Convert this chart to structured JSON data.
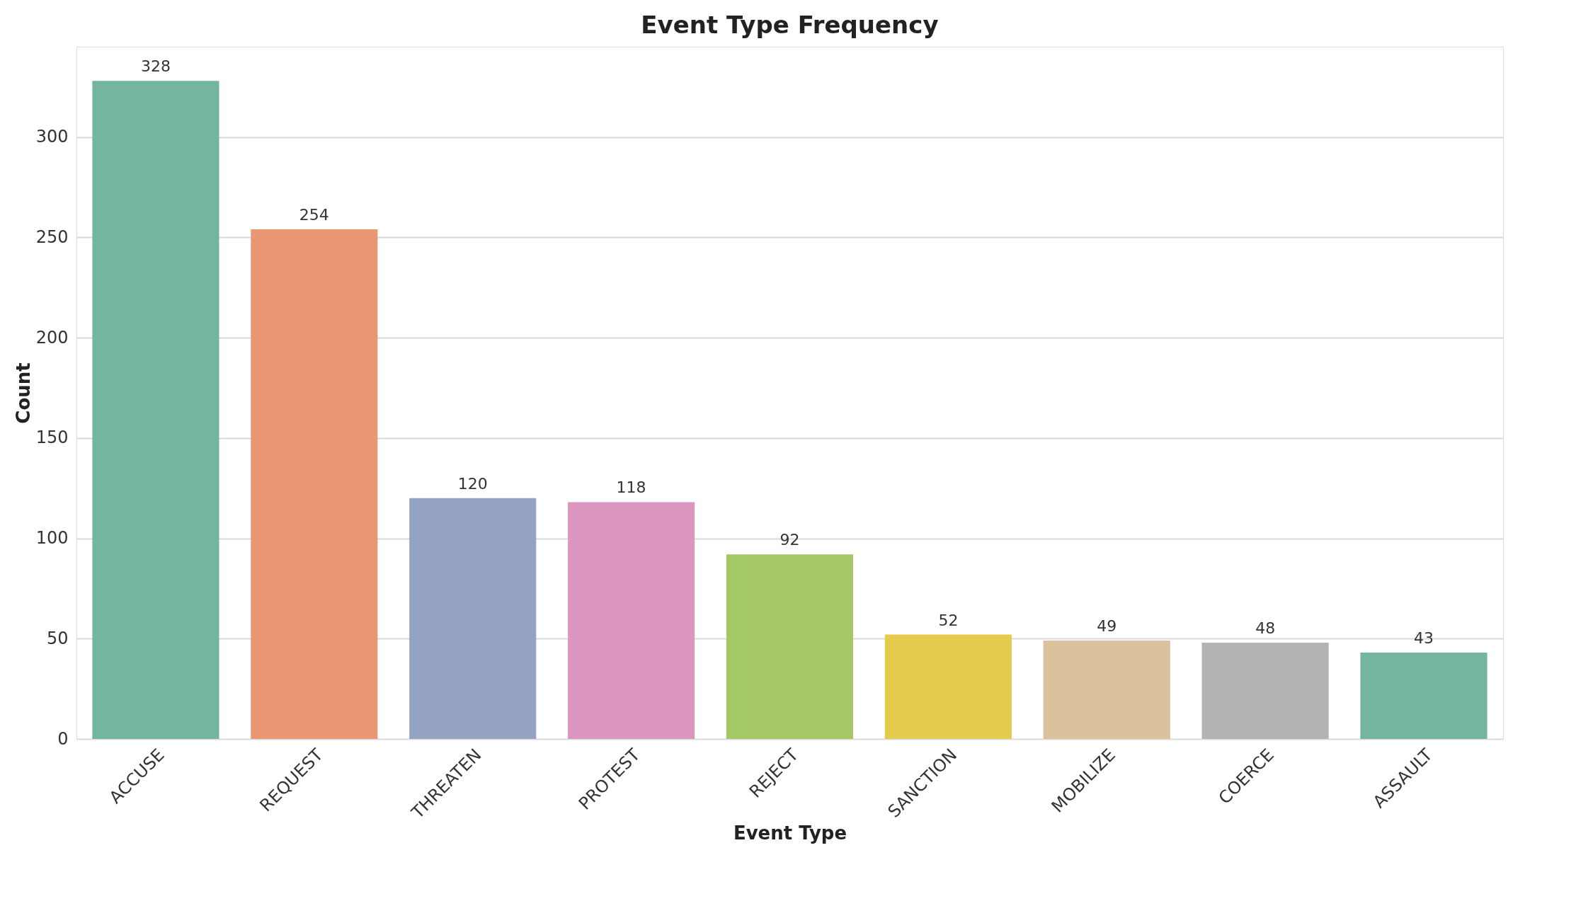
{
  "chart_data": {
    "type": "bar",
    "title": "Event Type Frequency",
    "xlabel": "Event Type",
    "ylabel": "Count",
    "categories": [
      "ACCUSE",
      "REQUEST",
      "THREATEN",
      "PROTEST",
      "REJECT",
      "SANCTION",
      "MOBILIZE",
      "COERCE",
      "ASSAULT"
    ],
    "values": [
      328,
      254,
      120,
      118,
      92,
      52,
      49,
      48,
      43
    ],
    "colors": [
      "#73b59f",
      "#e99675",
      "#95a3c3",
      "#db96c0",
      "#a4c866",
      "#e4cb4b",
      "#dbc29c",
      "#b3b3b3",
      "#73b59f"
    ],
    "ylim": [
      0,
      345
    ],
    "yticks": [
      0,
      50,
      100,
      150,
      200,
      250,
      300
    ],
    "grid": "y",
    "data_labels": true
  }
}
